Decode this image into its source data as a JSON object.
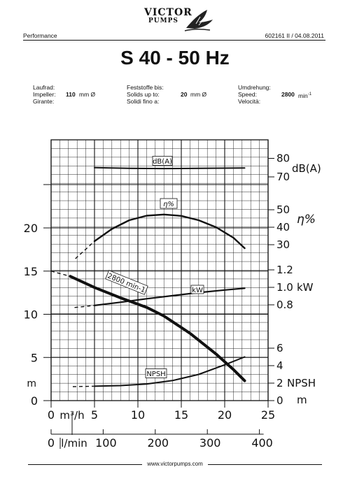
{
  "header": {
    "brand_line1": "VICTOR",
    "brand_line2": "PUMPS",
    "left_label": "Performance",
    "right_label": "602161 II / 04.08.2011",
    "title": "S 40 - 50 Hz"
  },
  "specs": {
    "col1": {
      "l1": "Laufrad:",
      "l2": "Impeller:",
      "v2": "110",
      "u2": "mm Ø",
      "l3": "Girante:"
    },
    "col2": {
      "l1": "Feststoffe bis:",
      "l2": "Solids up to:",
      "v2": "20",
      "u2": "mm Ø",
      "l3": "Solidi fino a:"
    },
    "col3": {
      "l1": "Umdrehung:",
      "l2": "Speed:",
      "v2": "2800",
      "u2": "min",
      "u2_sup": "-1",
      "l3": "Velocità:"
    }
  },
  "footer": {
    "url": "www.victorpumps.com"
  },
  "chart_data": {
    "type": "line",
    "x_unit_primary": "m³/h",
    "x_unit_secondary": "l/min",
    "xlim": [
      0,
      25
    ],
    "x_ticks": [
      "0",
      "5",
      "10",
      "15",
      "20",
      "25"
    ],
    "x2_ticks": [
      "0",
      "100",
      "200",
      "300",
      "400"
    ],
    "x2_values": [
      0,
      100,
      200,
      300,
      400
    ],
    "head_axis": {
      "unit": "m",
      "ticks": [
        "0",
        "5",
        "10",
        "15",
        "20"
      ],
      "values": [
        0,
        5,
        10,
        15,
        20
      ]
    },
    "db_axis": {
      "label": "dB(A)",
      "ticks": [
        "70",
        "80"
      ],
      "values": [
        70,
        80
      ]
    },
    "eff_axis": {
      "label": "η%",
      "ticks": [
        "30",
        "40",
        "50"
      ],
      "values": [
        30,
        40,
        50
      ]
    },
    "power_axis": {
      "label": "kW",
      "ticks": [
        "0.8",
        "1.0",
        "1.2"
      ],
      "values": [
        0.8,
        1.0,
        1.2
      ]
    },
    "npsh_axis": {
      "label": "NPSH",
      "unit": "m",
      "ticks": [
        "0",
        "2",
        "4",
        "6"
      ],
      "values": [
        0,
        2,
        4,
        6
      ]
    },
    "grid": true,
    "series": [
      {
        "name": "2800 min-1",
        "axis": "head",
        "x": [
          2.2,
          5,
          8,
          11,
          13,
          16,
          19,
          21,
          22.3
        ],
        "y": [
          14.4,
          13.1,
          11.9,
          10.8,
          9.8,
          7.8,
          5.4,
          3.6,
          2.3
        ],
        "dashed_x": [
          0,
          2.2
        ],
        "dashed_y": [
          15,
          14.4
        ]
      },
      {
        "name": "kW",
        "axis": "power",
        "x": [
          5,
          8,
          11,
          14,
          17,
          20,
          22.3
        ],
        "y": [
          0.793,
          0.83,
          0.87,
          0.905,
          0.94,
          0.97,
          0.99
        ],
        "dashed_x": [
          2.7,
          5
        ],
        "dashed_y": [
          0.77,
          0.793
        ]
      },
      {
        "name": "η%",
        "axis": "eff",
        "x": [
          5,
          7,
          9,
          11,
          13,
          15,
          17,
          19,
          21,
          22.3
        ],
        "y": [
          32,
          39,
          44,
          46.6,
          47.3,
          46.5,
          44,
          40,
          34,
          28
        ],
        "dashed_x": [
          2.8,
          5
        ],
        "dashed_y": [
          22,
          32
        ]
      },
      {
        "name": "dB(A)",
        "axis": "db",
        "x": [
          5,
          9,
          13,
          17,
          22.3
        ],
        "y": [
          75,
          74.6,
          74.5,
          74.6,
          74.8
        ]
      },
      {
        "name": "NPSH",
        "axis": "npsh",
        "x": [
          5,
          8,
          11,
          14,
          17,
          20,
          22.3
        ],
        "y": [
          1.65,
          1.72,
          1.9,
          2.3,
          3.0,
          4.1,
          5.0
        ],
        "dashed_x": [
          2.5,
          5
        ],
        "dashed_y": [
          1.6,
          1.65
        ]
      }
    ]
  }
}
